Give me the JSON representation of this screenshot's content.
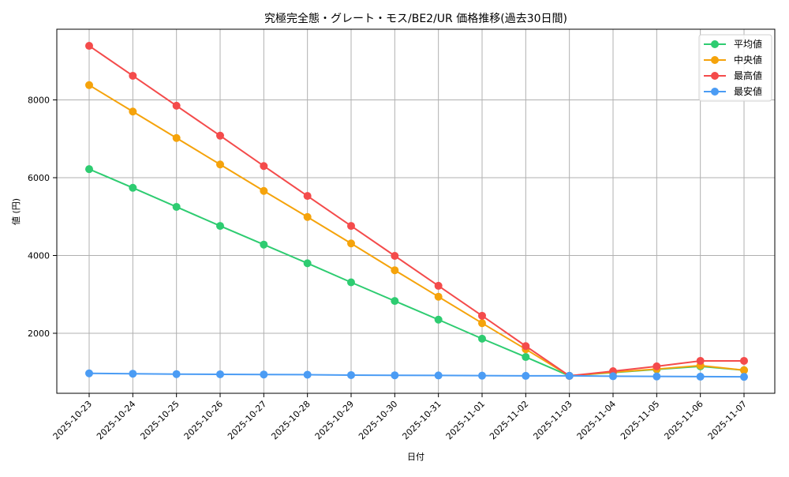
{
  "chart_data": {
    "type": "line",
    "title": "究極完全態・グレート・モス/BE2/UR 価格推移(過去30日間)",
    "xlabel": "日付",
    "ylabel": "値 (円)",
    "categories": [
      "2025-10-23",
      "2025-10-24",
      "2025-10-25",
      "2025-10-26",
      "2025-10-27",
      "2025-10-28",
      "2025-10-29",
      "2025-10-30",
      "2025-10-31",
      "2025-11-01",
      "2025-11-02",
      "2025-11-03",
      "2025-11-04",
      "2025-11-05",
      "2025-11-06",
      "2025-11-07"
    ],
    "yticks": [
      2000,
      4000,
      6000,
      8000
    ],
    "ylim": [
      500,
      9800
    ],
    "grid": true,
    "legend_position": "upper right",
    "series": [
      {
        "name": "平均値",
        "color": "#2ecc71",
        "values": [
          6220,
          5740,
          5250,
          4760,
          4280,
          3800,
          3310,
          2830,
          2350,
          1860,
          1390,
          905,
          990,
          1070,
          1150,
          1050
        ]
      },
      {
        "name": "中央値",
        "color": "#f5a30b",
        "values": [
          8380,
          7700,
          7020,
          6340,
          5660,
          4990,
          4310,
          3620,
          2940,
          2260,
          1590,
          905,
          1000,
          1080,
          1170,
          1050
        ]
      },
      {
        "name": "最高値",
        "color": "#f44b4b",
        "values": [
          9390,
          8620,
          7850,
          7080,
          6300,
          5530,
          4760,
          3990,
          3220,
          2450,
          1670,
          905,
          1025,
          1150,
          1290,
          1290
        ]
      },
      {
        "name": "最安値",
        "color": "#4b9cf4",
        "values": [
          970,
          960,
          950,
          945,
          940,
          935,
          925,
          920,
          915,
          910,
          905,
          905,
          895,
          890,
          885,
          880
        ]
      }
    ]
  }
}
